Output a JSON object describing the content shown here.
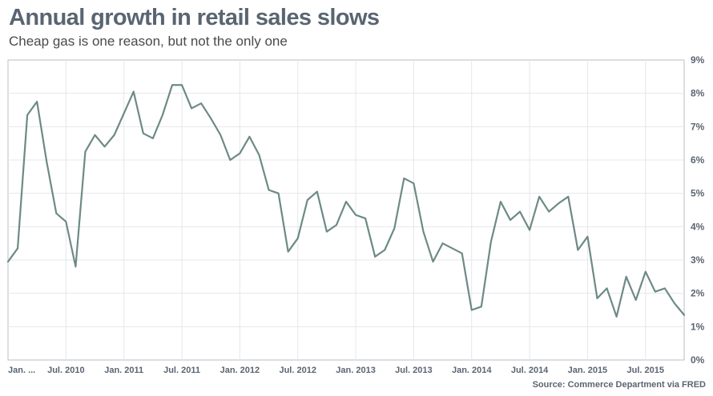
{
  "chart_data": {
    "type": "line",
    "title": "Annual growth in retail sales slows",
    "subtitle": "Cheap gas is one reason, but not the only one",
    "source": "Source: Commerce Department via FRED",
    "xlabel": "",
    "ylabel": "",
    "ylim": [
      0,
      9
    ],
    "y_ticks": [
      "0%",
      "1%",
      "2%",
      "3%",
      "4%",
      "5%",
      "6%",
      "7%",
      "8%",
      "9%"
    ],
    "x_tick_labels": [
      "Jan. ...",
      "Jul. 2010",
      "Jan. 2011",
      "Jul. 2011",
      "Jan. 2012",
      "Jul. 2012",
      "Jan. 2013",
      "Jul. 2013",
      "Jan. 2014",
      "Jul. 2014",
      "Jan. 2015",
      "Jul. 2015"
    ],
    "grid": true,
    "line_color": "#6d8a86",
    "series": [
      {
        "name": "Annual growth in retail sales (%)",
        "start": "Jan. 2010",
        "frequency": "monthly",
        "values": [
          2.95,
          3.35,
          7.35,
          7.75,
          5.95,
          4.4,
          4.15,
          2.8,
          6.25,
          6.75,
          6.4,
          6.75,
          7.4,
          8.05,
          6.8,
          6.65,
          7.35,
          8.25,
          8.25,
          7.55,
          7.7,
          7.25,
          6.75,
          6.0,
          6.2,
          6.7,
          6.15,
          5.1,
          5.0,
          3.25,
          3.65,
          4.8,
          5.05,
          3.85,
          4.05,
          4.75,
          4.35,
          4.25,
          3.1,
          3.3,
          3.95,
          5.45,
          5.3,
          3.85,
          2.95,
          3.5,
          3.35,
          3.2,
          1.5,
          1.6,
          3.55,
          4.75,
          4.2,
          4.45,
          3.9,
          4.9,
          4.45,
          4.7,
          4.9,
          3.3,
          3.7,
          1.85,
          2.15,
          1.3,
          2.5,
          1.8,
          2.65,
          2.05,
          2.15,
          1.7,
          1.35
        ]
      }
    ]
  }
}
